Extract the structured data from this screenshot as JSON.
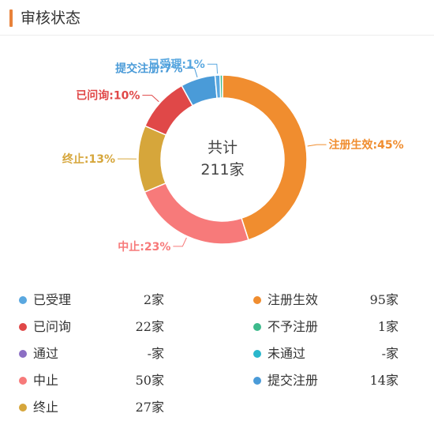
{
  "header": {
    "title": "审核状态"
  },
  "chart_data": {
    "type": "pie",
    "style": "donut",
    "center_label": {
      "line1": "共计",
      "line2": "211家"
    },
    "slices": [
      {
        "label": "注册生效:45%",
        "name": "注册生效",
        "value": 95,
        "percent": 45,
        "color": "#f08d2f"
      },
      {
        "label": "中止:23%",
        "name": "中止",
        "value": 50,
        "percent": 23,
        "color": "#f77a7a"
      },
      {
        "label": "终止:13%",
        "name": "终止",
        "value": 27,
        "percent": 13,
        "color": "#d6a63b"
      },
      {
        "label": "已问询:10%",
        "name": "已问询",
        "value": 22,
        "percent": 10,
        "color": "#e04848"
      },
      {
        "label": "提交注册:7%",
        "name": "提交注册",
        "value": 14,
        "percent": 7,
        "color": "#4a9bd8"
      },
      {
        "label": "已受理:1%",
        "name": "已受理",
        "value": 2,
        "percent": 1,
        "color": "#5aa8e0"
      },
      {
        "label": "",
        "name": "不予注册",
        "value": 1,
        "percent": 0,
        "color": "#3dba8c"
      }
    ]
  },
  "legend": {
    "left": [
      {
        "name": "已受理",
        "count": "2家",
        "color": "#5aa8e0"
      },
      {
        "name": "已问询",
        "count": "22家",
        "color": "#e04848"
      },
      {
        "name": "通过",
        "count": "-家",
        "color": "#8c6fc4"
      },
      {
        "name": "中止",
        "count": "50家",
        "color": "#f77a7a"
      },
      {
        "name": "终止",
        "count": "27家",
        "color": "#d6a63b"
      }
    ],
    "right": [
      {
        "name": "注册生效",
        "count": "95家",
        "color": "#f08d2f"
      },
      {
        "name": "不予注册",
        "count": "1家",
        "color": "#3dba8c"
      },
      {
        "name": "未通过",
        "count": "-家",
        "color": "#2ab7cc"
      },
      {
        "name": "提交注册",
        "count": "14家",
        "color": "#4a9bd8"
      }
    ]
  }
}
